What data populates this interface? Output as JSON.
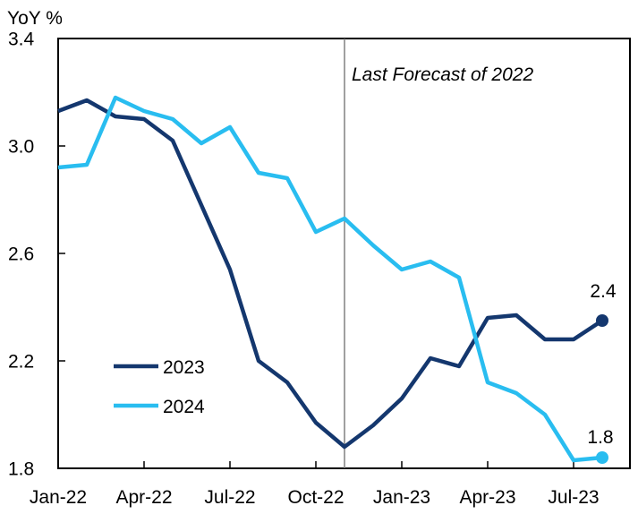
{
  "header": {
    "unit_label": "YoY %"
  },
  "annotation": {
    "text": "Last Forecast of 2022"
  },
  "legend": {
    "items": [
      {
        "label": "2023",
        "color": "#14376E"
      },
      {
        "label": "2024",
        "color": "#29BDF0"
      }
    ]
  },
  "colors": {
    "series_2023": "#14376E",
    "series_2024": "#29BDF0",
    "vline": "#808080",
    "axis": "#000000",
    "background": "#FFFFFF"
  },
  "chart_data": {
    "type": "line",
    "title": "",
    "ylabel": "YoY %",
    "xlabel": "",
    "grid": false,
    "legend_position": "inside-lower-left",
    "ylim": [
      1.8,
      3.4
    ],
    "y_ticks": [
      1.8,
      2.2,
      2.6,
      3.0,
      3.4
    ],
    "y_tick_labels": [
      "1.8",
      "2.2",
      "2.6",
      "3.0",
      "3.4"
    ],
    "x": [
      "Jan-22",
      "Feb-22",
      "Mar-22",
      "Apr-22",
      "May-22",
      "Jun-22",
      "Jul-22",
      "Aug-22",
      "Sep-22",
      "Oct-22",
      "Nov-22",
      "Dec-22",
      "Jan-23",
      "Feb-23",
      "Mar-23",
      "Apr-23",
      "May-23",
      "Jun-23",
      "Jul-23",
      "Aug-23"
    ],
    "x_tick_labels": [
      "Jan-22",
      "Apr-22",
      "Jul-22",
      "Oct-22",
      "Jan-23",
      "Apr-23",
      "Jul-23"
    ],
    "vline_at": "Nov-22",
    "annotation": "Last Forecast of 2022",
    "series": [
      {
        "name": "2023",
        "color": "#14376E",
        "end_label": "2.4",
        "end_marker": true,
        "values": [
          3.13,
          3.17,
          3.11,
          3.1,
          3.02,
          2.78,
          2.54,
          2.2,
          2.12,
          1.97,
          1.88,
          1.96,
          2.06,
          2.21,
          2.18,
          2.36,
          2.37,
          2.28,
          2.28,
          2.35
        ]
      },
      {
        "name": "2024",
        "color": "#29BDF0",
        "end_label": "1.8",
        "end_marker": true,
        "values": [
          2.92,
          2.93,
          3.18,
          3.13,
          3.1,
          3.01,
          3.07,
          2.9,
          2.88,
          2.68,
          2.73,
          2.63,
          2.54,
          2.57,
          2.51,
          2.12,
          2.08,
          2.0,
          1.83,
          1.84
        ]
      }
    ]
  }
}
